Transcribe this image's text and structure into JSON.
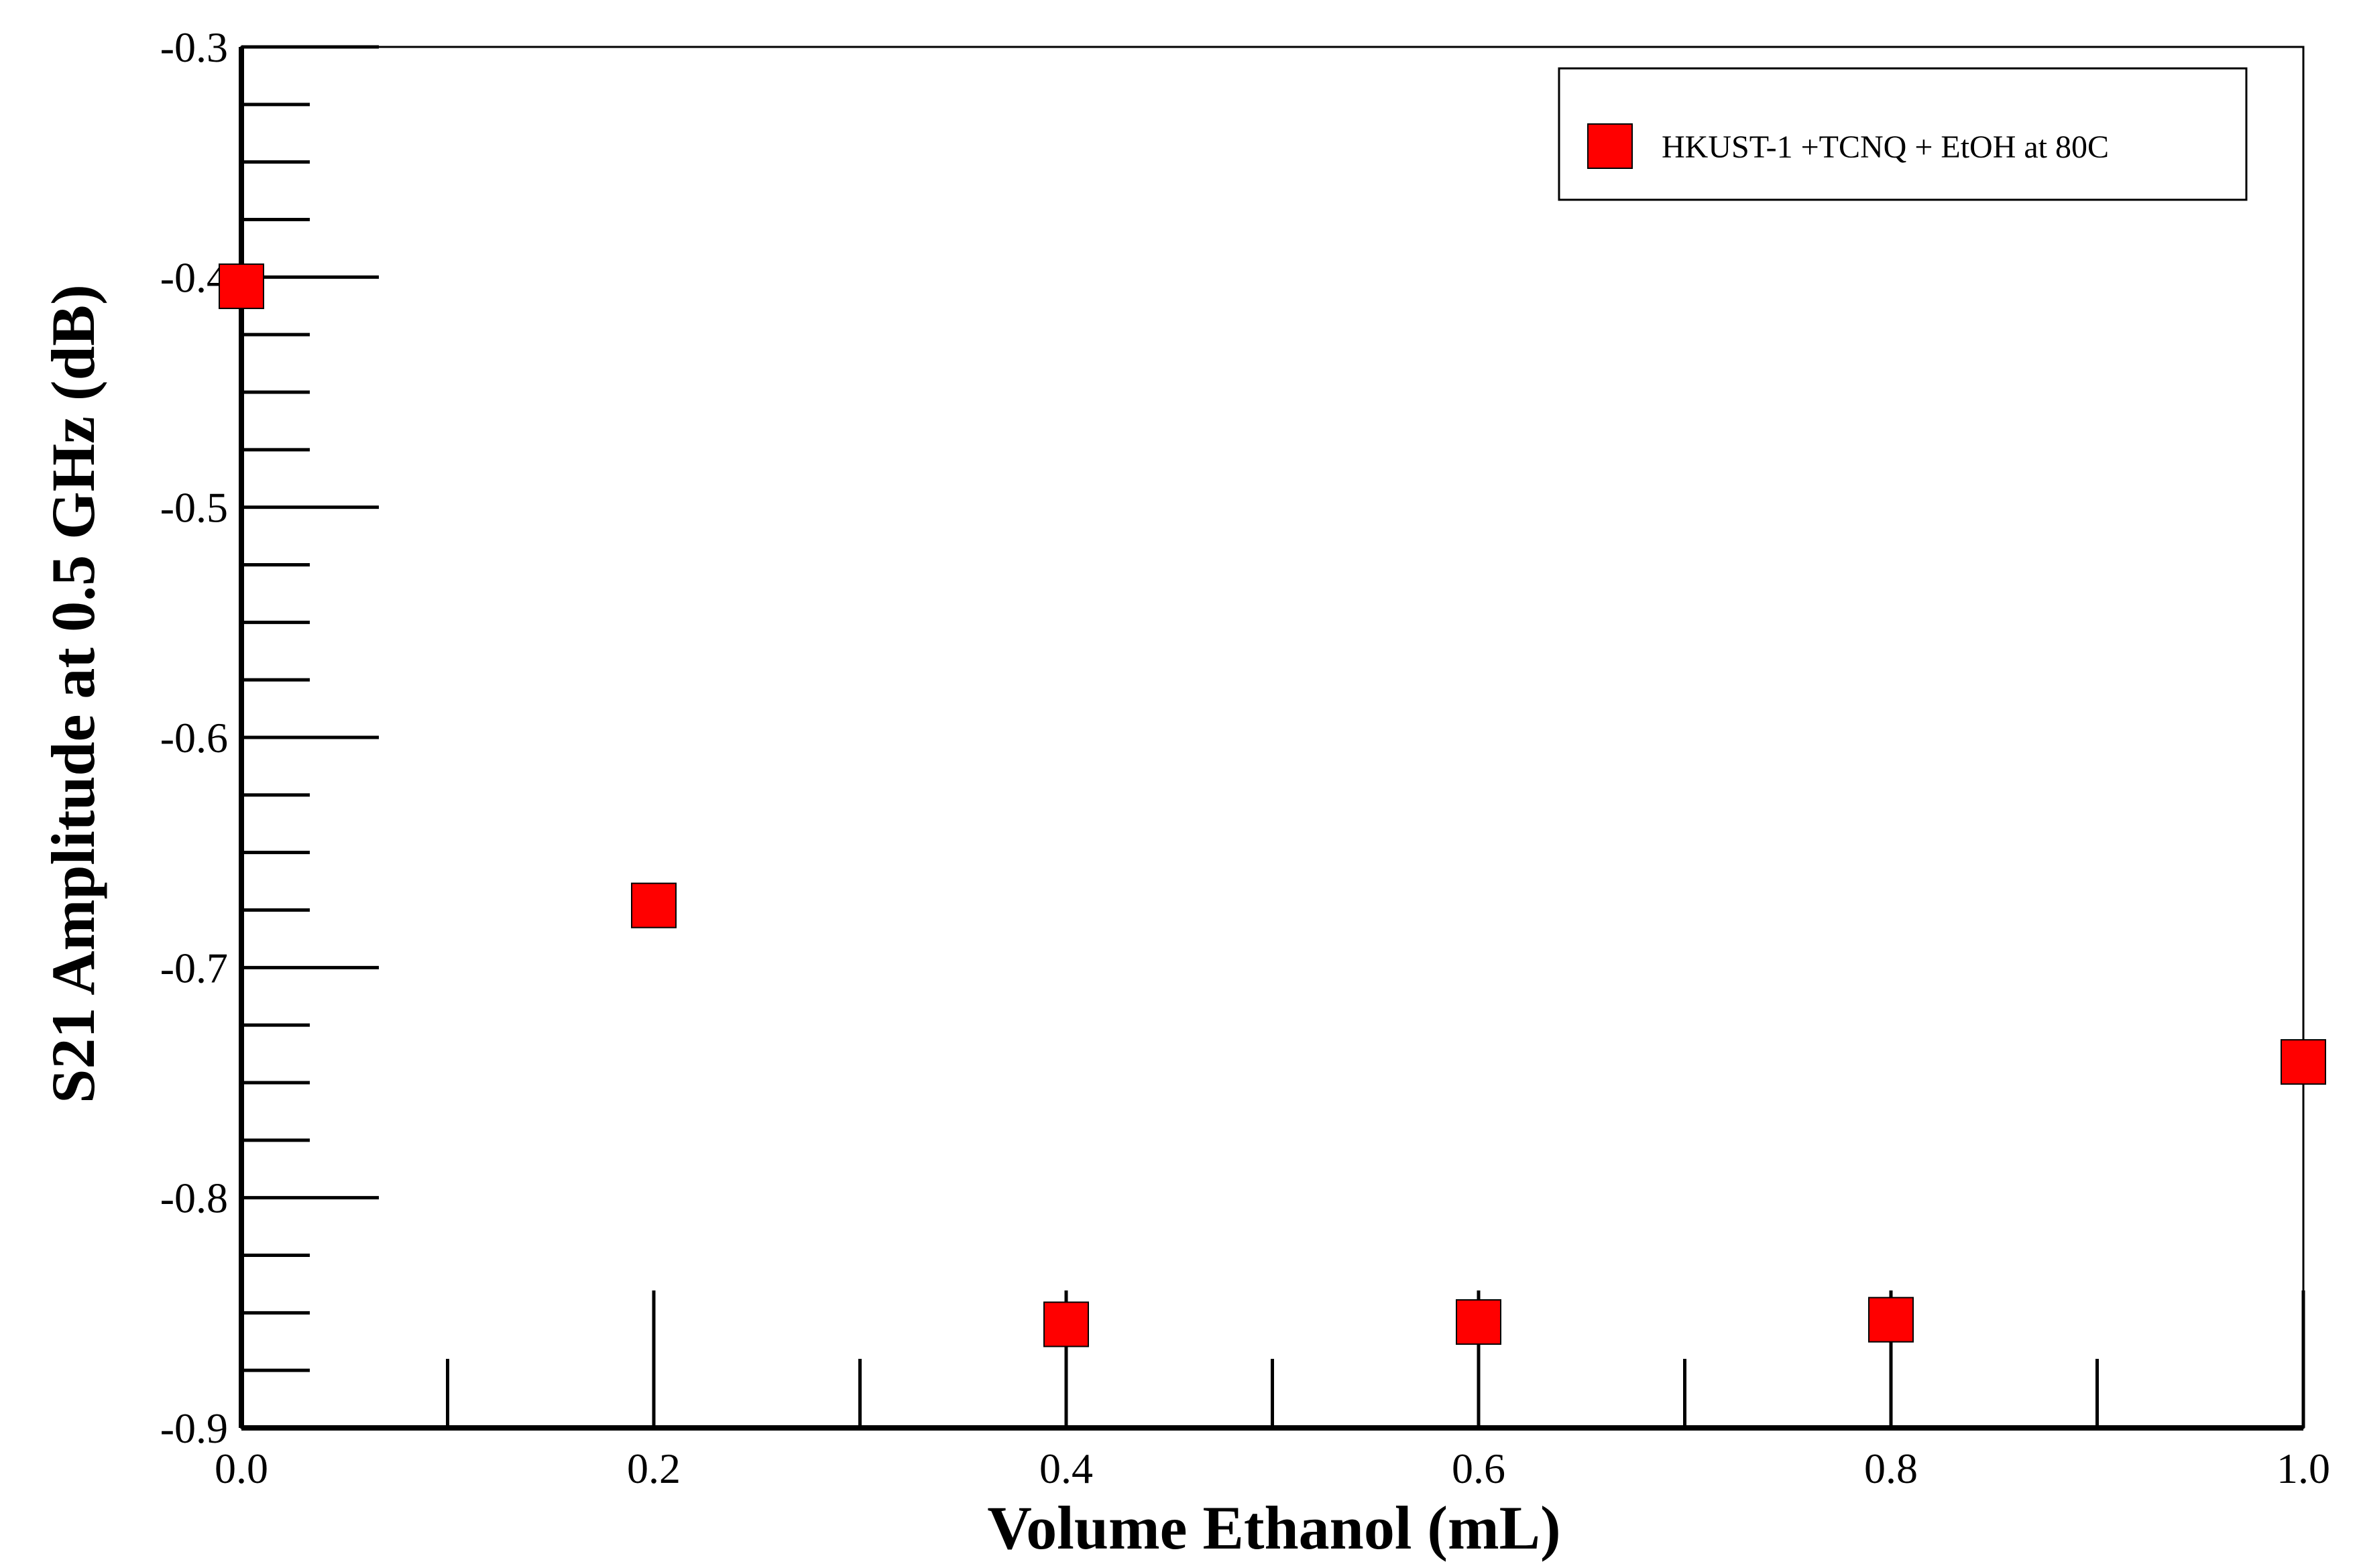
{
  "chart_data": {
    "type": "scatter",
    "title": "",
    "xlabel": "Volume Ethanol (mL)",
    "ylabel": "S21 Amplitude at 0.5 GHz  (dB)",
    "xlim": [
      0.0,
      1.0
    ],
    "ylim": [
      -0.9,
      -0.3
    ],
    "x_ticks": [
      0.0,
      0.2,
      0.4,
      0.6,
      0.8,
      1.0
    ],
    "x_tick_labels": [
      "0.0",
      "0.2",
      "0.4",
      "0.6",
      "0.8",
      "1.0"
    ],
    "x_minor_ticks": [
      0.1,
      0.3,
      0.5,
      0.7,
      0.9
    ],
    "y_ticks": [
      -0.3,
      -0.4,
      -0.5,
      -0.6,
      -0.7,
      -0.8,
      -0.9
    ],
    "y_tick_labels": [
      "-0.3",
      "-0.4",
      "-0.5",
      "-0.6",
      "-0.7",
      "-0.8",
      "-0.9"
    ],
    "y_minor_ticks": [
      -0.325,
      -0.35,
      -0.375,
      -0.425,
      -0.45,
      -0.475,
      -0.525,
      -0.55,
      -0.575,
      -0.625,
      -0.65,
      -0.675,
      -0.725,
      -0.75,
      -0.775,
      -0.825,
      -0.85,
      -0.875
    ],
    "grid": false,
    "legend_position": "top-right",
    "series": [
      {
        "name": "HKUST-1 +TCNQ + EtOH at 80C",
        "color": "#ff0000",
        "marker": "square",
        "x": [
          0.0,
          0.2,
          0.4,
          0.6,
          0.8,
          1.0
        ],
        "y": [
          -0.404,
          -0.673,
          -0.855,
          -0.854,
          -0.853,
          -0.741
        ]
      }
    ]
  }
}
